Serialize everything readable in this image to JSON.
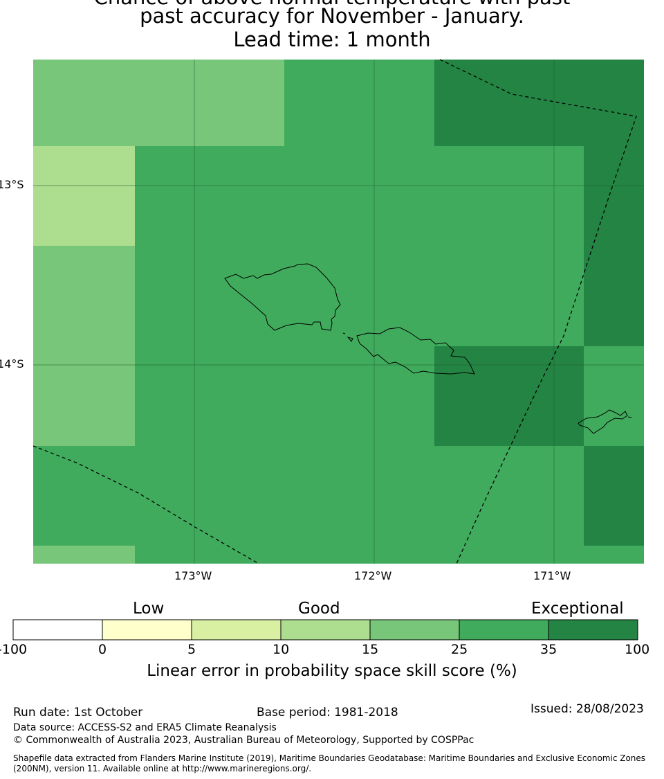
{
  "title": {
    "line1": "Chance of above normal temperature with past",
    "line2": "past accuracy for November - January.",
    "line3": "Lead time: 1 month"
  },
  "map": {
    "lat_labels": [
      "13°S",
      "14°S"
    ],
    "lon_labels": [
      "173°W",
      "172°W",
      "171°W"
    ]
  },
  "legend": {
    "categories": [
      "Low",
      "Good",
      "Exceptional"
    ],
    "ticks": [
      "-100",
      "0",
      "5",
      "10",
      "15",
      "25",
      "35",
      "100"
    ],
    "colors": [
      "#ffffff",
      "#ffffcc",
      "#d9f0a3",
      "#addd8e",
      "#78c679",
      "#41ab5d",
      "#238443"
    ],
    "label": "Linear error in probability space skill score (%)"
  },
  "footer": {
    "run_date": "Run date: 1st October",
    "base_period": "Base period: 1981-2018",
    "issued": "Issued: 28/08/2023",
    "data_source": "Data source: ACCESS-S2 and ERA5 Climate Reanalysis",
    "copyright": "© Commonwealth of Australia 2023, Australian Bureau of Meteorology, Supported by COSPPac",
    "shapefile_note": "Shapefile data extracted from Flanders Marine Institute (2019), Maritime Boundaries Geodatabase: Maritime Boundaries and Exclusive Economic Zones (200NM), version 11. Available online at http://www.marineregions.org/."
  }
}
